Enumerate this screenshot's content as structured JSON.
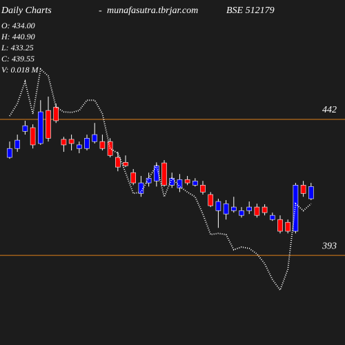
{
  "chart_data": {
    "type": "candlestick",
    "title": "Daily Charts",
    "separator": "-",
    "source": "munafasutra.tbrjar.com",
    "symbol": "BSE 512179",
    "annotations": [
      "O: 434.00",
      "H: 440.90",
      "L: 433.25",
      "C: 439.55",
      "V: 0.018 M"
    ],
    "categories": [
      null,
      null,
      null,
      null,
      null,
      null,
      null,
      null,
      null,
      null,
      null,
      null,
      null,
      null,
      null,
      null,
      null,
      null,
      null,
      null,
      null,
      null,
      null,
      null,
      null,
      null,
      null,
      null,
      null,
      null,
      null,
      null,
      null,
      null,
      null,
      null,
      null,
      null,
      null,
      null
    ],
    "open": [
      428.3,
      431.5,
      437.7,
      439.0,
      433.3,
      445.2,
      446.4,
      434.8,
      434.8,
      431.5,
      431.5,
      434.0,
      434.0,
      434.0,
      428.3,
      426.5,
      422.8,
      415.3,
      419.1,
      419.8,
      426.3,
      418.3,
      417.3,
      420.3,
      418.3,
      418.3,
      414.9,
      409.1,
      407.9,
      409.1,
      407.4,
      409.1,
      410.4,
      410.4,
      405.9,
      405.9,
      404.9,
      401.7,
      418.3,
      413.4
    ],
    "high": [
      434.0,
      436.5,
      441.5,
      440.2,
      448.9,
      450.2,
      447.7,
      435.7,
      436.5,
      434.0,
      436.5,
      440.7,
      436.5,
      435.2,
      430.3,
      429.0,
      424.1,
      421.6,
      422.8,
      426.5,
      427.3,
      422.8,
      422.3,
      421.6,
      420.8,
      419.8,
      415.8,
      413.4,
      412.9,
      414.1,
      410.4,
      412.4,
      411.6,
      411.4,
      408.4,
      407.4,
      405.9,
      419.1,
      419.8,
      419.1
    ],
    "low": [
      427.8,
      430.3,
      436.5,
      431.5,
      432.8,
      434.0,
      440.7,
      430.3,
      430.8,
      429.8,
      430.8,
      433.3,
      430.8,
      428.3,
      423.3,
      424.8,
      418.3,
      414.1,
      417.8,
      417.8,
      417.8,
      417.3,
      415.8,
      418.3,
      417.8,
      414.9,
      410.4,
      402.9,
      405.9,
      408.4,
      406.6,
      407.9,
      406.6,
      407.4,
      405.4,
      400.9,
      400.9,
      400.9,
      414.1,
      412.9
    ],
    "close": [
      431.5,
      434.5,
      439.7,
      432.8,
      444.7,
      435.2,
      441.5,
      432.8,
      433.3,
      432.8,
      435.2,
      436.5,
      431.5,
      429.0,
      424.8,
      425.3,
      419.1,
      419.1,
      420.8,
      425.3,
      418.3,
      420.8,
      420.3,
      419.1,
      419.8,
      415.8,
      410.9,
      412.4,
      411.6,
      410.4,
      409.1,
      410.4,
      407.4,
      408.4,
      407.4,
      401.7,
      401.7,
      418.3,
      415.3,
      417.8
    ],
    "up_color": "#0000ff",
    "down_color": "#ff0000",
    "overlay": {
      "color": "#ffffff",
      "values": [
        443.2,
        447.7,
        455.6,
        444.0,
        460.1,
        457.6,
        446.4,
        444.7,
        444.5,
        445.2,
        448.9,
        448.9,
        444.0,
        431.5,
        429.8,
        422.8,
        415.3,
        415.8,
        420.8,
        425.3,
        414.1,
        420.8,
        417.8,
        415.8,
        414.1,
        407.9,
        400.5,
        400.9,
        400.5,
        395.0,
        396.0,
        395.5,
        393.5,
        390.0,
        384.3,
        380.5,
        388.0,
        411.6,
        409.1,
        411.6
      ]
    },
    "ylim": [
      360.7,
      485.0
    ],
    "yticks": [
      442,
      393
    ],
    "level_color": "#e0801a"
  }
}
